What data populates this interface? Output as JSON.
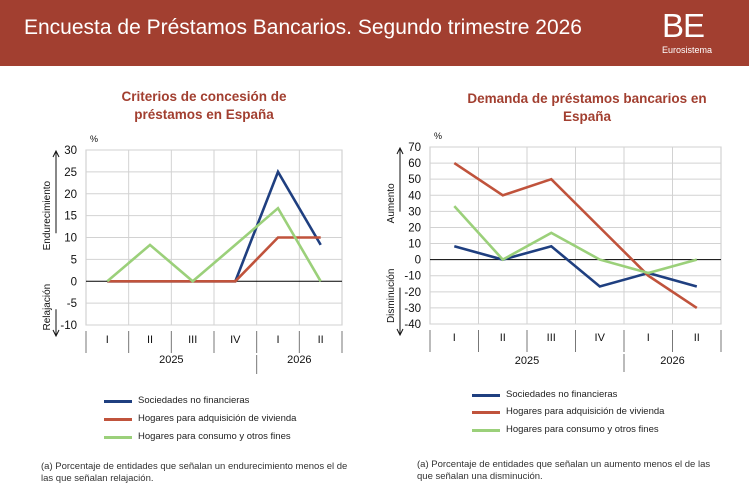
{
  "header": {
    "title": "Encuesta de Préstamos Bancarios. Segundo trimestre 2026",
    "logo_letters": "BE",
    "logo_subtitle": "Eurosistema",
    "background": "#a23f30"
  },
  "legend_series": [
    {
      "name": "Sociedades no financieras",
      "color": "#1f3f80"
    },
    {
      "name": "Hogares para adquisición de vivienda",
      "color": "#c0533c"
    },
    {
      "name": "Hogares para consumo y otros fines",
      "color": "#9bd07a"
    }
  ],
  "chart_data": [
    {
      "type": "line",
      "title": "Criterios de concesión de préstamos en España",
      "ylabel": "%",
      "upper_axis_note": "Endurecimiento",
      "lower_axis_note": "Relajación",
      "ylim": [
        -10,
        30
      ],
      "yticks": [
        -10,
        -5,
        0,
        5,
        10,
        15,
        20,
        25,
        30
      ],
      "categories": [
        "I",
        "II",
        "III",
        "IV",
        "I",
        "II"
      ],
      "years": [
        {
          "label": "2025",
          "span": 4
        },
        {
          "label": "2026",
          "span": 2
        }
      ],
      "series": [
        {
          "name": "Sociedades no financieras",
          "values": [
            0,
            0,
            0,
            0,
            25,
            8.3
          ]
        },
        {
          "name": "Hogares para adquisición de vivienda",
          "values": [
            0,
            0,
            0,
            0,
            10,
            10
          ]
        },
        {
          "name": "Hogares para consumo y otros fines",
          "values": [
            0,
            8.3,
            0,
            8.3,
            16.7,
            0
          ]
        }
      ],
      "grid": true,
      "legend_position": "bottom",
      "note": "(a) Porcentaje de entidades que señalan un endurecimiento menos el de las que señalan relajación."
    },
    {
      "type": "line",
      "title": "Demanda de préstamos bancarios en España",
      "ylabel": "%",
      "upper_axis_note": "Aumento",
      "lower_axis_note": "Disminución",
      "ylim": [
        -40,
        70
      ],
      "yticks": [
        -40,
        -30,
        -20,
        -10,
        0,
        10,
        20,
        30,
        40,
        50,
        60,
        70
      ],
      "categories": [
        "I",
        "II",
        "III",
        "IV",
        "I",
        "II"
      ],
      "years": [
        {
          "label": "2025",
          "span": 4
        },
        {
          "label": "2026",
          "span": 2
        }
      ],
      "series": [
        {
          "name": "Sociedades no financieras",
          "values": [
            8.3,
            0,
            8.3,
            -16.7,
            -8.3,
            -16.7
          ]
        },
        {
          "name": "Hogares para adquisición de vivienda",
          "values": [
            60,
            40,
            50,
            20,
            -10,
            -30
          ]
        },
        {
          "name": "Hogares para consumo y otros fines",
          "values": [
            33.3,
            0,
            16.7,
            0,
            -8.3,
            0
          ]
        }
      ],
      "grid": true,
      "legend_position": "bottom",
      "note": "(a) Porcentaje de entidades que señalan un aumento menos el de las que señalan una disminución."
    }
  ]
}
